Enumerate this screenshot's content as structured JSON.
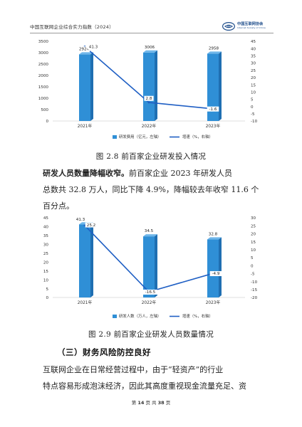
{
  "header": {
    "title": "中国互联网企业综合实力指数（2024）",
    "logo_cn": "中国互联网协会",
    "logo_en": "Internet Society of China"
  },
  "chart_data": [
    {
      "type": "bar",
      "categories": [
        "2021年",
        "2022年",
        "2023年"
      ],
      "series": [
        {
          "name": "研发费用（亿元，左轴）",
          "values": [
            2924,
            3006,
            2958
          ],
          "axis": "left",
          "color": "#2f8fd6"
        },
        {
          "name": "增速（%，右轴）",
          "type": "line",
          "values": [
            41.3,
            2.8,
            -1.6
          ],
          "axis": "right",
          "color": "#1f5fc4"
        }
      ],
      "bar_labels": [
        "2924",
        "3006",
        "2958"
      ],
      "line_labels": [
        "41.3",
        "2.8",
        "-1.6"
      ],
      "ylim_left": [
        0,
        3500
      ],
      "yticks_left": [
        0,
        500,
        1000,
        1500,
        2000,
        2500,
        3000,
        3500
      ],
      "ylim_right": [
        -10,
        45
      ],
      "yticks_right": [
        -10,
        -5,
        0,
        5,
        10,
        15,
        20,
        25,
        30,
        35,
        40,
        45
      ],
      "legend": "bottom",
      "grid": false
    },
    {
      "type": "bar",
      "categories": [
        "2021年",
        "2022年",
        "2023年"
      ],
      "series": [
        {
          "name": "研发人数（万人，左轴）",
          "values": [
            41.3,
            34.5,
            32.8
          ],
          "axis": "left",
          "color": "#2f8fd6"
        },
        {
          "name": "增速（%，右轴）",
          "type": "line",
          "values": [
            25.2,
            -16.5,
            -4.9
          ],
          "axis": "right",
          "color": "#1f5fc4"
        }
      ],
      "bar_labels": [
        "41.3",
        "34.5",
        "32.8"
      ],
      "line_labels": [
        "25.2",
        "-16.5",
        "-4.9"
      ],
      "ylim_left": [
        0,
        45
      ],
      "yticks_left": [
        0,
        5,
        10,
        15,
        20,
        25,
        30,
        35,
        40,
        45
      ],
      "ylim_right": [
        -20,
        30
      ],
      "yticks_right": [
        -20,
        -15,
        -10,
        -5,
        0,
        5,
        10,
        15,
        20,
        25,
        30
      ],
      "legend": "bottom",
      "grid": false
    }
  ],
  "captions": {
    "fig1": "图 2.8   前百家企业研发投入情况",
    "fig2": "图 2.9   前百家企业研发人员数量情况"
  },
  "para1": {
    "lead": "研发人员数量降幅收窄。",
    "line1_rest": "前百家企业 2023 年研发人员",
    "line2": "总数共 32.8 万人，同比下降 4.9%，降幅较去年收窄 11.6 个",
    "line3": "百分点。"
  },
  "section": "（三）财务风险防控良好",
  "para2": {
    "line1": "互联网企业在日常经营过程中，由于“轻资产”的行业",
    "line2": "特点容易形成泡沫经济，因此其高度重视现金流量充足、资"
  },
  "footer": {
    "prefix": "第",
    "page": "14",
    "mid": "页 共",
    "total": "38",
    "suffix": "页"
  }
}
